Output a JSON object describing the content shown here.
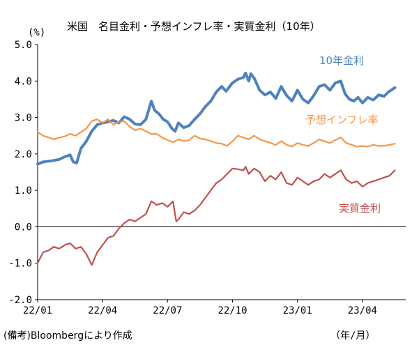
{
  "chart_data": {
    "type": "line",
    "title": "米国　名目金利・予想インフレ率・実質金利（10年）",
    "ylabel": "(%)",
    "xlabel": "（年/月）",
    "note": "(備考)Bloombergにより作成",
    "ylim": [
      -2.0,
      5.0
    ],
    "yticks": [
      "5.0",
      "4.0",
      "3.0",
      "2.0",
      "1.0",
      "0.0",
      "-1.0",
      "-2.0"
    ],
    "xticks": [
      "22/01",
      "22/04",
      "22/07",
      "22/10",
      "23/01",
      "23/04"
    ],
    "x_unit": "months since 22/01",
    "grid": false,
    "series": [
      {
        "name": "10年金利",
        "color": "#4F81BD",
        "points": [
          [
            0,
            1.72
          ],
          [
            0.25,
            1.78
          ],
          [
            0.5,
            1.8
          ],
          [
            0.75,
            1.82
          ],
          [
            1.0,
            1.85
          ],
          [
            1.25,
            1.92
          ],
          [
            1.5,
            1.97
          ],
          [
            1.65,
            1.78
          ],
          [
            1.8,
            1.75
          ],
          [
            2.0,
            2.15
          ],
          [
            2.25,
            2.35
          ],
          [
            2.5,
            2.62
          ],
          [
            2.75,
            2.8
          ],
          [
            3.0,
            2.85
          ],
          [
            3.25,
            2.88
          ],
          [
            3.5,
            2.92
          ],
          [
            3.75,
            2.85
          ],
          [
            4.0,
            3.02
          ],
          [
            4.25,
            2.95
          ],
          [
            4.5,
            2.82
          ],
          [
            4.75,
            2.8
          ],
          [
            5.0,
            2.95
          ],
          [
            5.25,
            3.45
          ],
          [
            5.4,
            3.2
          ],
          [
            5.6,
            3.1
          ],
          [
            5.8,
            2.95
          ],
          [
            6.0,
            2.88
          ],
          [
            6.2,
            2.7
          ],
          [
            6.35,
            2.62
          ],
          [
            6.5,
            2.85
          ],
          [
            6.75,
            2.72
          ],
          [
            7.0,
            2.78
          ],
          [
            7.25,
            2.95
          ],
          [
            7.5,
            3.1
          ],
          [
            7.75,
            3.3
          ],
          [
            8.0,
            3.45
          ],
          [
            8.25,
            3.7
          ],
          [
            8.5,
            3.85
          ],
          [
            8.7,
            3.72
          ],
          [
            9.0,
            3.95
          ],
          [
            9.25,
            4.05
          ],
          [
            9.5,
            4.1
          ],
          [
            9.6,
            4.22
          ],
          [
            9.75,
            4.0
          ],
          [
            9.85,
            4.2
          ],
          [
            10.0,
            4.08
          ],
          [
            10.25,
            3.75
          ],
          [
            10.5,
            3.62
          ],
          [
            10.75,
            3.7
          ],
          [
            11.0,
            3.52
          ],
          [
            11.25,
            3.85
          ],
          [
            11.5,
            3.6
          ],
          [
            11.75,
            3.45
          ],
          [
            12.0,
            3.75
          ],
          [
            12.25,
            3.5
          ],
          [
            12.5,
            3.4
          ],
          [
            12.75,
            3.6
          ],
          [
            13.0,
            3.85
          ],
          [
            13.25,
            3.9
          ],
          [
            13.5,
            3.75
          ],
          [
            13.75,
            3.95
          ],
          [
            14.0,
            4.0
          ],
          [
            14.2,
            3.65
          ],
          [
            14.4,
            3.5
          ],
          [
            14.6,
            3.45
          ],
          [
            14.8,
            3.55
          ],
          [
            15.0,
            3.4
          ],
          [
            15.25,
            3.55
          ],
          [
            15.5,
            3.48
          ],
          [
            15.75,
            3.62
          ],
          [
            16.0,
            3.58
          ],
          [
            16.2,
            3.7
          ],
          [
            16.5,
            3.82
          ]
        ]
      },
      {
        "name": "予想インフレ率",
        "color": "#F79646",
        "points": [
          [
            0,
            2.6
          ],
          [
            0.25,
            2.5
          ],
          [
            0.5,
            2.45
          ],
          [
            0.75,
            2.4
          ],
          [
            1.0,
            2.45
          ],
          [
            1.25,
            2.48
          ],
          [
            1.5,
            2.55
          ],
          [
            1.75,
            2.5
          ],
          [
            2.0,
            2.6
          ],
          [
            2.25,
            2.7
          ],
          [
            2.5,
            2.9
          ],
          [
            2.75,
            2.95
          ],
          [
            3.0,
            2.85
          ],
          [
            3.25,
            2.95
          ],
          [
            3.5,
            2.8
          ],
          [
            3.75,
            2.88
          ],
          [
            4.0,
            2.9
          ],
          [
            4.25,
            2.75
          ],
          [
            4.5,
            2.65
          ],
          [
            4.75,
            2.7
          ],
          [
            5.0,
            2.62
          ],
          [
            5.25,
            2.55
          ],
          [
            5.5,
            2.55
          ],
          [
            5.75,
            2.45
          ],
          [
            6.0,
            2.38
          ],
          [
            6.25,
            2.32
          ],
          [
            6.5,
            2.4
          ],
          [
            6.75,
            2.35
          ],
          [
            7.0,
            2.38
          ],
          [
            7.25,
            2.5
          ],
          [
            7.5,
            2.42
          ],
          [
            7.75,
            2.4
          ],
          [
            8.0,
            2.35
          ],
          [
            8.25,
            2.3
          ],
          [
            8.5,
            2.28
          ],
          [
            8.75,
            2.22
          ],
          [
            9.0,
            2.35
          ],
          [
            9.25,
            2.5
          ],
          [
            9.5,
            2.45
          ],
          [
            9.75,
            2.4
          ],
          [
            10.0,
            2.5
          ],
          [
            10.25,
            2.4
          ],
          [
            10.5,
            2.35
          ],
          [
            10.75,
            2.3
          ],
          [
            11.0,
            2.25
          ],
          [
            11.25,
            2.35
          ],
          [
            11.5,
            2.25
          ],
          [
            11.75,
            2.2
          ],
          [
            12.0,
            2.3
          ],
          [
            12.25,
            2.25
          ],
          [
            12.5,
            2.22
          ],
          [
            12.75,
            2.3
          ],
          [
            13.0,
            2.4
          ],
          [
            13.25,
            2.35
          ],
          [
            13.5,
            2.3
          ],
          [
            13.75,
            2.38
          ],
          [
            14.0,
            2.45
          ],
          [
            14.25,
            2.3
          ],
          [
            14.5,
            2.25
          ],
          [
            14.75,
            2.2
          ],
          [
            15.0,
            2.22
          ],
          [
            15.25,
            2.2
          ],
          [
            15.5,
            2.25
          ],
          [
            15.75,
            2.22
          ],
          [
            16.0,
            2.22
          ],
          [
            16.25,
            2.25
          ],
          [
            16.5,
            2.28
          ]
        ]
      },
      {
        "name": "実質金利",
        "color": "#C0504D",
        "points": [
          [
            0,
            -1.0
          ],
          [
            0.25,
            -0.7
          ],
          [
            0.5,
            -0.65
          ],
          [
            0.75,
            -0.55
          ],
          [
            1.0,
            -0.6
          ],
          [
            1.25,
            -0.5
          ],
          [
            1.5,
            -0.45
          ],
          [
            1.75,
            -0.6
          ],
          [
            2.0,
            -0.55
          ],
          [
            2.25,
            -0.75
          ],
          [
            2.5,
            -1.05
          ],
          [
            2.75,
            -0.7
          ],
          [
            3.0,
            -0.5
          ],
          [
            3.25,
            -0.3
          ],
          [
            3.5,
            -0.25
          ],
          [
            3.75,
            -0.05
          ],
          [
            4.0,
            0.1
          ],
          [
            4.25,
            0.2
          ],
          [
            4.5,
            0.15
          ],
          [
            4.75,
            0.25
          ],
          [
            5.0,
            0.35
          ],
          [
            5.25,
            0.7
          ],
          [
            5.5,
            0.6
          ],
          [
            5.75,
            0.65
          ],
          [
            6.0,
            0.55
          ],
          [
            6.25,
            0.7
          ],
          [
            6.4,
            0.15
          ],
          [
            6.5,
            0.2
          ],
          [
            6.75,
            0.4
          ],
          [
            7.0,
            0.35
          ],
          [
            7.25,
            0.45
          ],
          [
            7.5,
            0.6
          ],
          [
            7.75,
            0.8
          ],
          [
            8.0,
            1.0
          ],
          [
            8.25,
            1.2
          ],
          [
            8.5,
            1.3
          ],
          [
            8.75,
            1.45
          ],
          [
            9.0,
            1.6
          ],
          [
            9.25,
            1.58
          ],
          [
            9.5,
            1.55
          ],
          [
            9.6,
            1.65
          ],
          [
            9.75,
            1.45
          ],
          [
            10.0,
            1.6
          ],
          [
            10.25,
            1.5
          ],
          [
            10.5,
            1.25
          ],
          [
            10.75,
            1.4
          ],
          [
            11.0,
            1.3
          ],
          [
            11.25,
            1.5
          ],
          [
            11.5,
            1.2
          ],
          [
            11.75,
            1.15
          ],
          [
            12.0,
            1.35
          ],
          [
            12.25,
            1.25
          ],
          [
            12.5,
            1.15
          ],
          [
            12.75,
            1.25
          ],
          [
            13.0,
            1.3
          ],
          [
            13.25,
            1.45
          ],
          [
            13.5,
            1.35
          ],
          [
            13.75,
            1.45
          ],
          [
            14.0,
            1.55
          ],
          [
            14.25,
            1.3
          ],
          [
            14.5,
            1.2
          ],
          [
            14.75,
            1.25
          ],
          [
            15.0,
            1.1
          ],
          [
            15.25,
            1.2
          ],
          [
            15.5,
            1.25
          ],
          [
            15.75,
            1.3
          ],
          [
            16.0,
            1.35
          ],
          [
            16.25,
            1.4
          ],
          [
            16.5,
            1.55
          ]
        ]
      }
    ]
  }
}
